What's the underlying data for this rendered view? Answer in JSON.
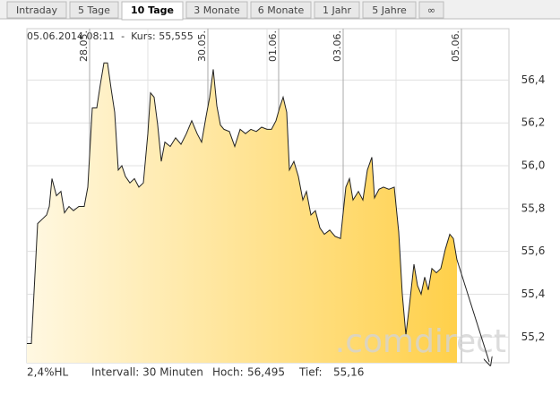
{
  "tabs": [
    "Intraday",
    "5 Tage",
    "10 Tage",
    "3 Monate",
    "6 Monate",
    "1 Jahr",
    "5 Jahre",
    "∞"
  ],
  "active_tab": 2,
  "header": "05.06.2014 08:11  -  Kurs: 55,555",
  "watermark": ".comdirect",
  "footer": {
    "hl": "2,4%HL",
    "interval": "Intervall: 30 Minuten",
    "high_label": "Hoch:",
    "high": "56,495",
    "low_label": "Tief:",
    "low": "55,16"
  },
  "chart_data": {
    "type": "area",
    "color": "#222222",
    "fill_colors": [
      "#fff8e2",
      "#ffd04a"
    ],
    "x": [
      0,
      1.25,
      3,
      4.25,
      5.5,
      6.25,
      7,
      8.25,
      9.5,
      10.5,
      11.75,
      13,
      14.5,
      16,
      17,
      18.25,
      19.5,
      20.5,
      21.5,
      22.5,
      23.5,
      24.5,
      25.5,
      26.5,
      27.5,
      28.75,
      30,
      31.25,
      32.5,
      33.75,
      34.5,
      35.5,
      36.5,
      37.5,
      38.5,
      40,
      41.5,
      43,
      44.5,
      46,
      47.5,
      48.75,
      50,
      51,
      52,
      53,
      54,
      55,
      56.5,
      58,
      59.5,
      61,
      62.5,
      64,
      65.5,
      67,
      68.25,
      69.5,
      70.5,
      71.5,
      72.5,
      73.25,
      74.5,
      75.75,
      77,
      78,
      79.25,
      80.5,
      81.75,
      83,
      84.5,
      86,
      87.5,
      89,
      90,
      91,
      92.5,
      93.75,
      95,
      96.25,
      97,
      98.25,
      99.5,
      101,
      102.5,
      103.75,
      104.75,
      105.75,
      106.75,
      108,
      109,
      110,
      111,
      112,
      113,
      114.25,
      115.5,
      116.75,
      118,
      119,
      120
    ],
    "values": [
      55.17,
      55.17,
      55.73,
      55.75,
      55.77,
      55.81,
      55.94,
      55.86,
      55.88,
      55.78,
      55.81,
      55.79,
      55.81,
      55.81,
      55.9,
      56.27,
      56.27,
      56.38,
      56.48,
      56.48,
      56.36,
      56.25,
      55.98,
      56.0,
      55.95,
      55.92,
      55.94,
      55.9,
      55.92,
      56.15,
      56.34,
      56.32,
      56.19,
      56.02,
      56.11,
      56.09,
      56.13,
      56.1,
      56.15,
      56.21,
      56.15,
      56.11,
      56.23,
      56.32,
      56.45,
      56.28,
      56.19,
      56.17,
      56.16,
      56.09,
      56.17,
      56.15,
      56.17,
      56.16,
      56.18,
      56.17,
      56.17,
      56.21,
      56.27,
      56.32,
      56.25,
      55.98,
      56.02,
      55.95,
      55.84,
      55.88,
      55.77,
      55.79,
      55.71,
      55.68,
      55.7,
      55.67,
      55.66,
      55.9,
      55.94,
      55.84,
      55.88,
      55.84,
      55.98,
      56.04,
      55.85,
      55.89,
      55.9,
      55.89,
      55.9,
      55.69,
      55.4,
      55.21,
      55.35,
      55.54,
      55.44,
      55.4,
      55.48,
      55.42,
      55.52,
      55.5,
      55.52,
      55.61,
      55.68,
      55.66,
      55.56
    ],
    "xlim": [
      0,
      135
    ],
    "xticks": [
      {
        "value": 17.5,
        "label": "28.05."
      },
      {
        "value": 50.5,
        "label": "30.05."
      },
      {
        "value": 70.25,
        "label": "01.06."
      },
      {
        "value": 88.25,
        "label": "03.06."
      },
      {
        "value": 121.25,
        "label": "05.06."
      }
    ],
    "xminor": [
      33.75,
      67,
      103
    ],
    "ylim": [
      55.08,
      56.64
    ],
    "yticks": [
      {
        "value": 55.2,
        "label": "55,2"
      },
      {
        "value": 55.4,
        "label": "55,4"
      },
      {
        "value": 55.6,
        "label": "55,6"
      },
      {
        "value": 55.8,
        "label": "55,8"
      },
      {
        "value": 56.0,
        "label": "56,0"
      },
      {
        "value": 56.2,
        "label": "56,2"
      },
      {
        "value": 56.4,
        "label": "56,4"
      }
    ],
    "grid": true
  }
}
